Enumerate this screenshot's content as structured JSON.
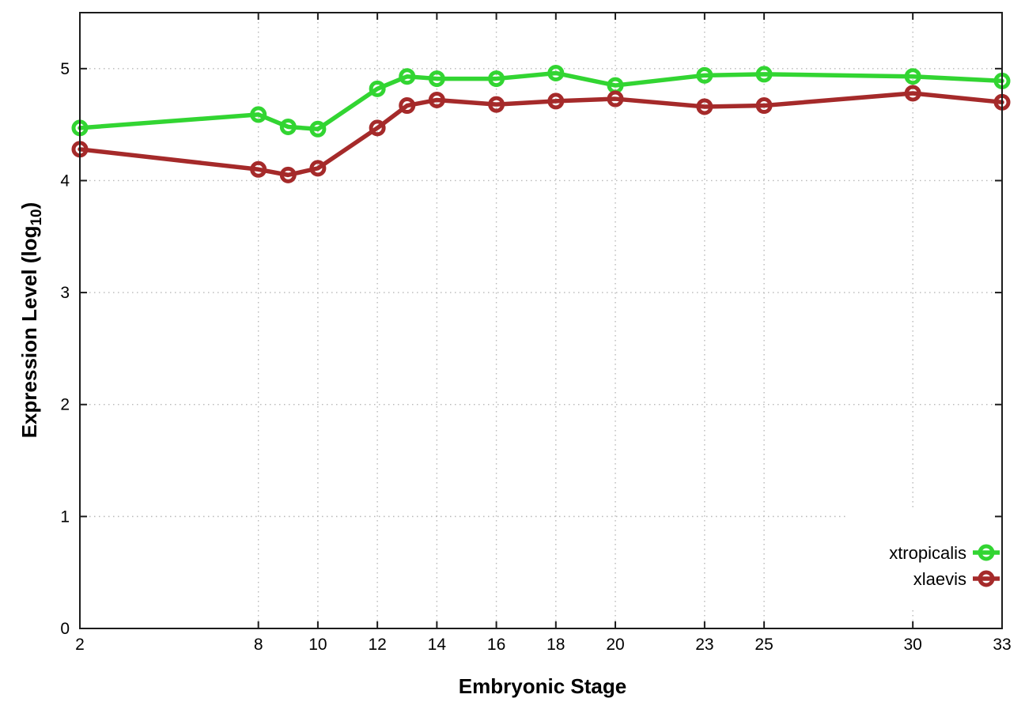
{
  "chart_data": {
    "type": "line",
    "title": "",
    "xlabel": "Embryonic Stage",
    "ylabel": "Expression Level (log10)",
    "ylabel_parts": {
      "pre": "Expression Level (log",
      "sub": "10",
      "post": ")"
    },
    "xlim": [
      2,
      33
    ],
    "ylim": [
      0,
      5.5
    ],
    "x_ticks": [
      2,
      8,
      10,
      12,
      14,
      16,
      18,
      20,
      23,
      25,
      30,
      33
    ],
    "y_ticks": [
      0,
      1,
      2,
      3,
      4,
      5
    ],
    "grid": true,
    "legend_position": "bottom-right-inside",
    "x": [
      2,
      8,
      9,
      10,
      12,
      13,
      14,
      16,
      18,
      20,
      23,
      25,
      30,
      33
    ],
    "series": [
      {
        "name": "xtropicalis",
        "color": "#32d532",
        "values": [
          4.47,
          4.59,
          4.48,
          4.46,
          4.82,
          4.93,
          4.91,
          4.91,
          4.96,
          4.85,
          4.94,
          4.95,
          4.93,
          4.89
        ]
      },
      {
        "name": "xlaevis",
        "color": "#a52a2a",
        "values": [
          4.28,
          4.1,
          4.05,
          4.11,
          4.47,
          4.67,
          4.72,
          4.68,
          4.71,
          4.73,
          4.66,
          4.67,
          4.78,
          4.7
        ]
      }
    ],
    "colors": {
      "axis": "#1c1c1c",
      "grid": "#b8b8b8",
      "text": "#000000",
      "background": "#ffffff"
    }
  }
}
